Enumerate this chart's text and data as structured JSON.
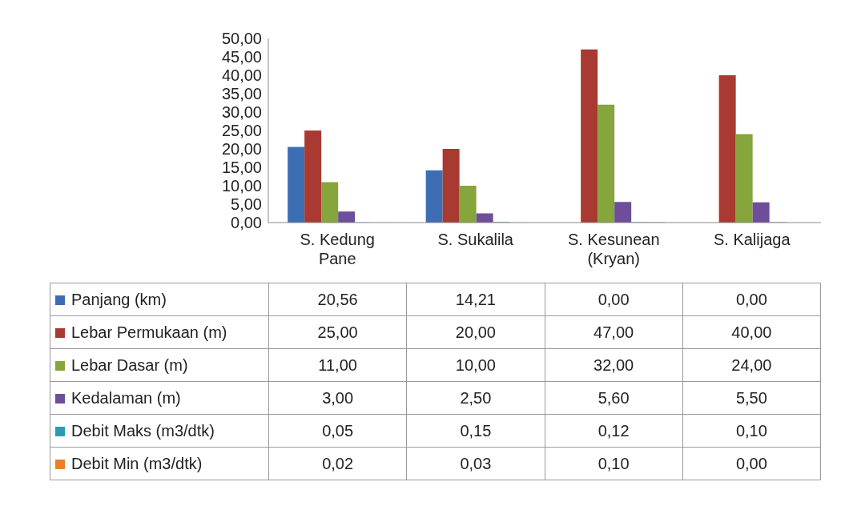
{
  "chart_data": {
    "type": "bar",
    "categories": [
      "S. Kedung Pane",
      "S. Sukalila",
      "S. Kesunean (Kryan)",
      "S. Kalijaga"
    ],
    "series": [
      {
        "name": "Panjang (km)",
        "color": "#3d6eb4",
        "values": [
          20.56,
          14.21,
          0,
          0
        ],
        "value_labels": [
          "20,56",
          "14,21",
          "0,00",
          "0,00"
        ]
      },
      {
        "name": "Lebar Permukaan (m)",
        "color": "#a83a32",
        "values": [
          25,
          20,
          47,
          40
        ],
        "value_labels": [
          "25,00",
          "20,00",
          "47,00",
          "40,00"
        ]
      },
      {
        "name": "Lebar Dasar (m)",
        "color": "#86a53c",
        "values": [
          11,
          10,
          32,
          24
        ],
        "value_labels": [
          "11,00",
          "10,00",
          "32,00",
          "24,00"
        ]
      },
      {
        "name": "Kedalaman (m)",
        "color": "#6e4e9a",
        "values": [
          3,
          2.5,
          5.6,
          5.5
        ],
        "value_labels": [
          "3,00",
          "2,50",
          "5,60",
          "5,50"
        ]
      },
      {
        "name": "Debit Maks (m3/dtk)",
        "color": "#2e9bb5",
        "values": [
          0.05,
          0.15,
          0.12,
          0.1
        ],
        "value_labels": [
          "0,05",
          "0,15",
          "0,12",
          "0,10"
        ]
      },
      {
        "name": "Debit Min (m3/dtk)",
        "color": "#e5812f",
        "values": [
          0.02,
          0.03,
          0.1,
          0
        ],
        "value_labels": [
          "0,02",
          "0,03",
          "0,10",
          "0,00"
        ]
      }
    ],
    "ylim": [
      0,
      50
    ],
    "yticks": [
      {
        "value": 0,
        "label": "0,00"
      },
      {
        "value": 5,
        "label": "5,00"
      },
      {
        "value": 10,
        "label": "10,00"
      },
      {
        "value": 15,
        "label": "15,00"
      },
      {
        "value": 20,
        "label": "20,00"
      },
      {
        "value": 25,
        "label": "25,00"
      },
      {
        "value": 30,
        "label": "30,00"
      },
      {
        "value": 35,
        "label": "35,00"
      },
      {
        "value": 40,
        "label": "40,00"
      },
      {
        "value": 45,
        "label": "45,00"
      },
      {
        "value": 50,
        "label": "50,00"
      }
    ],
    "legend": "bottom"
  }
}
